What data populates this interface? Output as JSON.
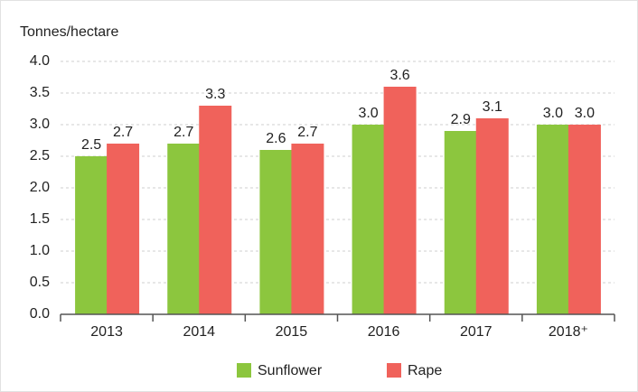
{
  "chart_data": {
    "type": "bar",
    "y_label": "Tonnes/hectare",
    "categories": [
      "2013",
      "2014",
      "2015",
      "2016",
      "2017",
      "2018⁺"
    ],
    "series": [
      {
        "name": "Sunflower",
        "color": "#8cc63e",
        "values": [
          2.5,
          2.7,
          2.6,
          3.0,
          2.9,
          3.0
        ],
        "value_labels": [
          "2.5",
          "2.7",
          "2.6",
          "3.0",
          "2.9",
          "3.0"
        ]
      },
      {
        "name": "Rape",
        "color": "#f0625b",
        "values": [
          2.7,
          3.3,
          2.7,
          3.6,
          3.1,
          3.0
        ],
        "value_labels": [
          "2.7",
          "3.3",
          "2.7",
          "3.6",
          "3.1",
          "3.0"
        ]
      }
    ],
    "ylim": [
      0,
      4
    ],
    "yticks": [
      {
        "value": 0,
        "label": "0.0"
      },
      0.5,
      {
        "value": 1,
        "label": "1.0"
      },
      1.5,
      {
        "value": 2,
        "label": "2.0"
      },
      2.5,
      {
        "value": 3,
        "label": "3.0"
      },
      3.5,
      {
        "value": 4,
        "label": "4.0"
      }
    ],
    "grid": true,
    "legend": "bottom"
  }
}
